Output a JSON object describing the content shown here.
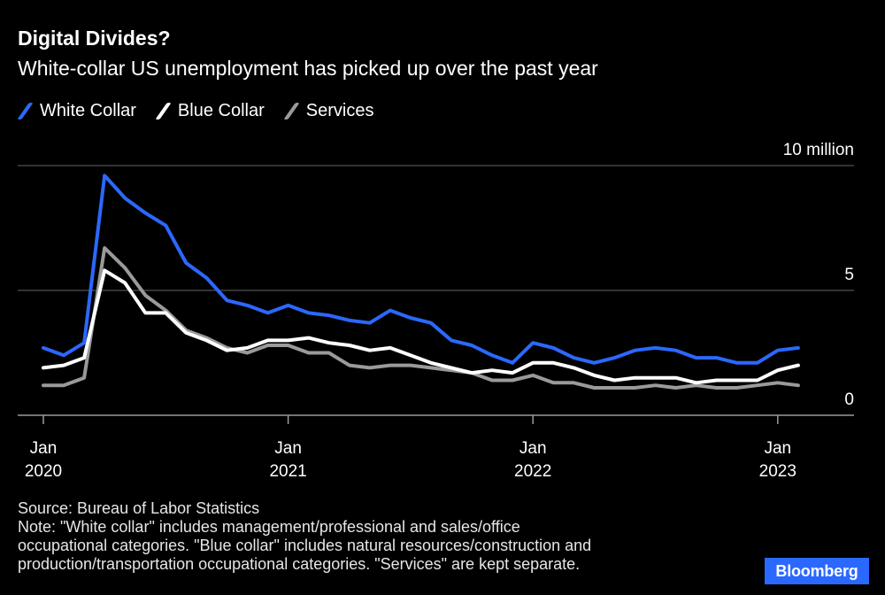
{
  "header": {
    "title": "Digital Divides?",
    "subtitle": "White-collar US unemployment has picked up over the past year"
  },
  "colors": {
    "background": "#000000",
    "white_collar": "#2b68ff",
    "blue_collar": "#ffffff",
    "services": "#9a9a9a",
    "grid": "#666666",
    "brand": "#2b68ff"
  },
  "chart_data": {
    "type": "line",
    "title": "Digital Divides?",
    "subtitle": "White-collar US unemployment has picked up over the past year",
    "unit_label": "10 million",
    "ylim": [
      0,
      10
    ],
    "y_ticks": [
      {
        "value": 10,
        "label": "10 million"
      },
      {
        "value": 5,
        "label": "5"
      },
      {
        "value": 0,
        "label": "0"
      }
    ],
    "x_ticks": [
      {
        "index": 0,
        "label_month": "Jan",
        "label_year": "2020"
      },
      {
        "index": 12,
        "label_month": "Jan",
        "label_year": "2021"
      },
      {
        "index": 24,
        "label_month": "Jan",
        "label_year": "2022"
      },
      {
        "index": 36,
        "label_month": "Jan",
        "label_year": "2023"
      }
    ],
    "x_start": "Jan 2020",
    "x_end": "Feb 2023",
    "series": [
      {
        "name": "White Collar",
        "color": "#2b68ff",
        "values": [
          2.7,
          2.4,
          2.9,
          9.6,
          8.7,
          8.1,
          7.6,
          6.1,
          5.5,
          4.6,
          4.4,
          4.1,
          4.4,
          4.1,
          4.0,
          3.8,
          3.7,
          4.2,
          3.9,
          3.7,
          3.0,
          2.8,
          2.4,
          2.1,
          2.9,
          2.7,
          2.3,
          2.1,
          2.3,
          2.6,
          2.7,
          2.6,
          2.3,
          2.3,
          2.1,
          2.1,
          2.6,
          2.7
        ]
      },
      {
        "name": "Blue Collar",
        "color": "#ffffff",
        "values": [
          1.9,
          2.0,
          2.3,
          5.8,
          5.3,
          4.1,
          4.1,
          3.3,
          3.0,
          2.6,
          2.7,
          3.0,
          3.0,
          3.1,
          2.9,
          2.8,
          2.6,
          2.7,
          2.4,
          2.1,
          1.9,
          1.7,
          1.8,
          1.7,
          2.1,
          2.1,
          1.9,
          1.6,
          1.4,
          1.5,
          1.5,
          1.5,
          1.3,
          1.4,
          1.4,
          1.4,
          1.8,
          2.0
        ]
      },
      {
        "name": "Services",
        "color": "#9a9a9a",
        "values": [
          1.2,
          1.2,
          1.5,
          6.7,
          5.9,
          4.8,
          4.2,
          3.4,
          3.1,
          2.7,
          2.5,
          2.8,
          2.8,
          2.5,
          2.5,
          2.0,
          1.9,
          2.0,
          2.0,
          1.9,
          1.8,
          1.7,
          1.4,
          1.4,
          1.6,
          1.3,
          1.3,
          1.1,
          1.1,
          1.1,
          1.2,
          1.1,
          1.2,
          1.1,
          1.1,
          1.2,
          1.3,
          1.2
        ]
      }
    ]
  },
  "footer": {
    "source": "Source: Bureau of Labor Statistics",
    "note_lines": [
      "Note: \"White collar\" includes management/professional and sales/office",
      "occupational categories. \"Blue collar\" includes natural resources/construction and",
      "production/transportation occupational categories. \"Services\" are kept separate."
    ]
  },
  "brand": {
    "logo_text": "Bloomberg"
  }
}
